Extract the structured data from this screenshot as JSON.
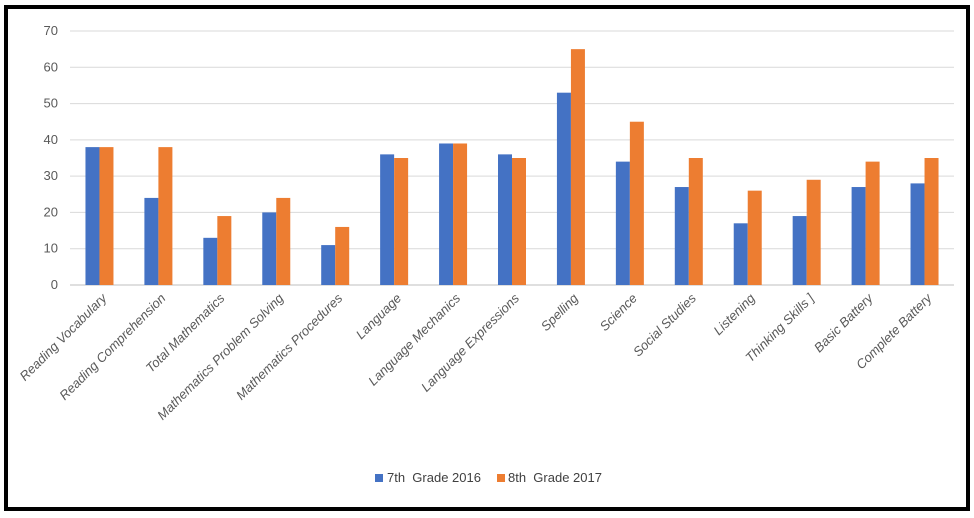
{
  "chart_data": {
    "type": "bar",
    "title": "",
    "xlabel": "",
    "ylabel": "",
    "ylim": [
      0,
      70
    ],
    "yticks": [
      0,
      10,
      20,
      30,
      40,
      50,
      60,
      70
    ],
    "grid": true,
    "legend_position": "bottom",
    "categories": [
      "Reading Vocabulary",
      "Reading Comprehension",
      "Total Mathematics",
      "Mathematics Problem Solving",
      "Mathematics Procedures",
      "Language",
      "Language Mechanics",
      "Language Expressions",
      "Spelling",
      "Science",
      "Social Studies",
      "Listening",
      "Thinking Skills ]",
      "Basic Battery",
      "Complete Battery"
    ],
    "series": [
      {
        "name": "7th  Grade 2016",
        "color": "#4472C4",
        "values": [
          38,
          24,
          13,
          20,
          11,
          36,
          39,
          36,
          53,
          34,
          27,
          17,
          19,
          27,
          28
        ]
      },
      {
        "name": "8th  Grade 2017",
        "color": "#ED7D31",
        "values": [
          38,
          38,
          19,
          24,
          16,
          35,
          39,
          35,
          65,
          45,
          35,
          26,
          29,
          34,
          35
        ]
      }
    ]
  }
}
